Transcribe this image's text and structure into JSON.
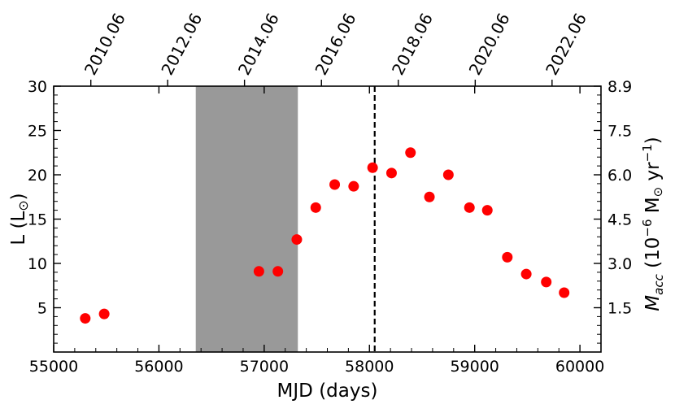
{
  "chart_data": {
    "type": "scatter",
    "xlabel": "MJD (days)",
    "ylabel_left": "L (L",
    "ylabel_left_sym": "⊙",
    "ylabel_left_close": ")",
    "ylabel_right_main": "M",
    "ylabel_right_sub": "acc",
    "ylabel_right_unit_a": " (10",
    "ylabel_right_unit_exp": "−6",
    "ylabel_right_unit_b": " M",
    "ylabel_right_unit_sym": "⊙",
    "ylabel_right_unit_c": " yr",
    "ylabel_right_unit_exp2": "−1",
    "ylabel_right_unit_d": ")",
    "xlim": [
      55000,
      60200
    ],
    "ylim": [
      0,
      30
    ],
    "xticks": [
      "55000",
      "56000",
      "57000",
      "58000",
      "59000",
      "60000"
    ],
    "yticks_left": [
      "5",
      "10",
      "15",
      "20",
      "25",
      "30"
    ],
    "yticks_right": [
      "1.5",
      "3.0",
      "4.5",
      "6.0",
      "7.5",
      "8.9"
    ],
    "yticks_right_values": [
      5,
      10,
      15,
      20,
      25,
      30
    ],
    "top_axis_labels": [
      "2010.06",
      "2012.06",
      "2014.06",
      "2016.06",
      "2018.06",
      "2020.06",
      "2022.06"
    ],
    "top_axis_values": [
      55353,
      56083,
      56813,
      57544,
      58274,
      59005,
      59735
    ],
    "shaded_region": [
      56350,
      57320
    ],
    "shaded_color": "#999999",
    "vline_x": 58050,
    "point_color": "#ff0000",
    "points": [
      {
        "x": 55300,
        "y": 3.8
      },
      {
        "x": 55480,
        "y": 4.3
      },
      {
        "x": 56950,
        "y": 9.1
      },
      {
        "x": 57130,
        "y": 9.1
      },
      {
        "x": 57310,
        "y": 12.7
      },
      {
        "x": 57490,
        "y": 16.3
      },
      {
        "x": 57670,
        "y": 18.9
      },
      {
        "x": 57850,
        "y": 18.7
      },
      {
        "x": 58030,
        "y": 20.8
      },
      {
        "x": 58210,
        "y": 20.2
      },
      {
        "x": 58390,
        "y": 22.5
      },
      {
        "x": 58570,
        "y": 17.5
      },
      {
        "x": 58750,
        "y": 20.0
      },
      {
        "x": 58950,
        "y": 16.3
      },
      {
        "x": 59120,
        "y": 16.0
      },
      {
        "x": 59310,
        "y": 10.7
      },
      {
        "x": 59490,
        "y": 8.8
      },
      {
        "x": 59680,
        "y": 7.9
      },
      {
        "x": 59850,
        "y": 6.7
      }
    ]
  }
}
